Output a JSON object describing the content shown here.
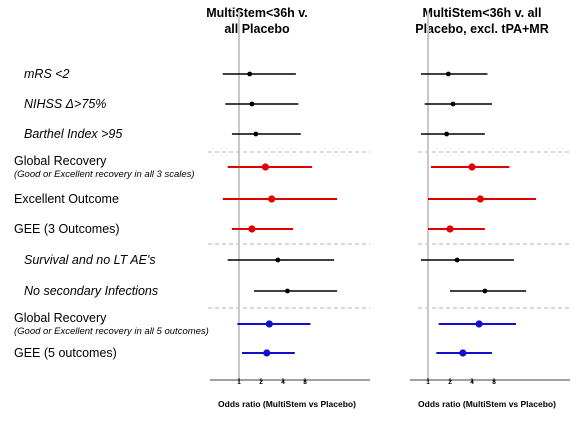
{
  "chart_data": {
    "type": "forest",
    "xscale": "log2",
    "reference_line": 1,
    "ticks": [
      "1",
      "2",
      "4",
      "8"
    ],
    "rows": [
      {
        "label": "mRS <2",
        "sublabel": "",
        "style": "italic",
        "group": "black"
      },
      {
        "label": "NIHSS Δ>75%",
        "sublabel": "",
        "style": "italic",
        "group": "black"
      },
      {
        "label": "Barthel Index >95",
        "sublabel": "",
        "style": "italic",
        "group": "black"
      },
      {
        "label": "Global Recovery",
        "sublabel": "(Good or Excellent recovery in all 3 scales)",
        "style": "normal",
        "group": "red"
      },
      {
        "label": "Excellent Outcome",
        "sublabel": "",
        "style": "normal",
        "group": "red"
      },
      {
        "label": "GEE (3 Outcomes)",
        "sublabel": "",
        "style": "normal",
        "group": "red"
      },
      {
        "label": "Survival and no LT AE's",
        "sublabel": "",
        "style": "italic",
        "group": "black"
      },
      {
        "label": "No secondary Infections",
        "sublabel": "",
        "style": "italic",
        "group": "black"
      },
      {
        "label": "Global Recovery",
        "sublabel": "(Good or Excellent recovery in all 5 outcomes)",
        "style": "normal",
        "group": "blue"
      },
      {
        "label": "GEE (5 outcomes)",
        "sublabel": "",
        "style": "normal",
        "group": "blue"
      }
    ],
    "group_colors": {
      "black": "#000000",
      "red": "#e00000",
      "blue": "#1010cc"
    },
    "panels": [
      {
        "title": [
          "MultiStem<36h v.",
          "all Placebo"
        ],
        "xlabel": "Odds ratio (MultiStem vs Placebo)",
        "estimates": [
          {
            "or": 1.4,
            "lo": 0.6,
            "hi": 6.0
          },
          {
            "or": 1.5,
            "lo": 0.65,
            "hi": 6.5
          },
          {
            "or": 1.7,
            "lo": 0.8,
            "hi": 7.0
          },
          {
            "or": 2.3,
            "lo": 0.7,
            "hi": 10.0
          },
          {
            "or": 2.8,
            "lo": 0.6,
            "hi": 22.0
          },
          {
            "or": 1.5,
            "lo": 0.8,
            "hi": 5.5
          },
          {
            "or": 3.4,
            "lo": 0.7,
            "hi": 20.0
          },
          {
            "or": 4.6,
            "lo": 1.6,
            "hi": 22.0
          },
          {
            "or": 2.6,
            "lo": 0.95,
            "hi": 9.5
          },
          {
            "or": 2.4,
            "lo": 1.1,
            "hi": 5.8
          }
        ]
      },
      {
        "title": [
          "MultiStem<36h v. all",
          "Placebo, excl. tPA+MR"
        ],
        "xlabel": "Odds ratio (MultiStem vs Placebo)",
        "estimates": [
          {
            "or": 1.9,
            "lo": 0.8,
            "hi": 6.5
          },
          {
            "or": 2.2,
            "lo": 0.9,
            "hi": 7.5
          },
          {
            "or": 1.8,
            "lo": 0.8,
            "hi": 6.0
          },
          {
            "or": 4.0,
            "lo": 1.1,
            "hi": 13.0
          },
          {
            "or": 5.2,
            "lo": 1.0,
            "hi": 30.0
          },
          {
            "or": 2.0,
            "lo": 1.0,
            "hi": 6.0
          },
          {
            "or": 2.5,
            "lo": 0.8,
            "hi": 15.0
          },
          {
            "or": 6.0,
            "lo": 2.0,
            "hi": 22.0
          },
          {
            "or": 5.0,
            "lo": 1.4,
            "hi": 16.0
          },
          {
            "or": 3.0,
            "lo": 1.3,
            "hi": 7.5
          }
        ]
      }
    ],
    "separators_after_rows": [
      3,
      6,
      8
    ]
  }
}
